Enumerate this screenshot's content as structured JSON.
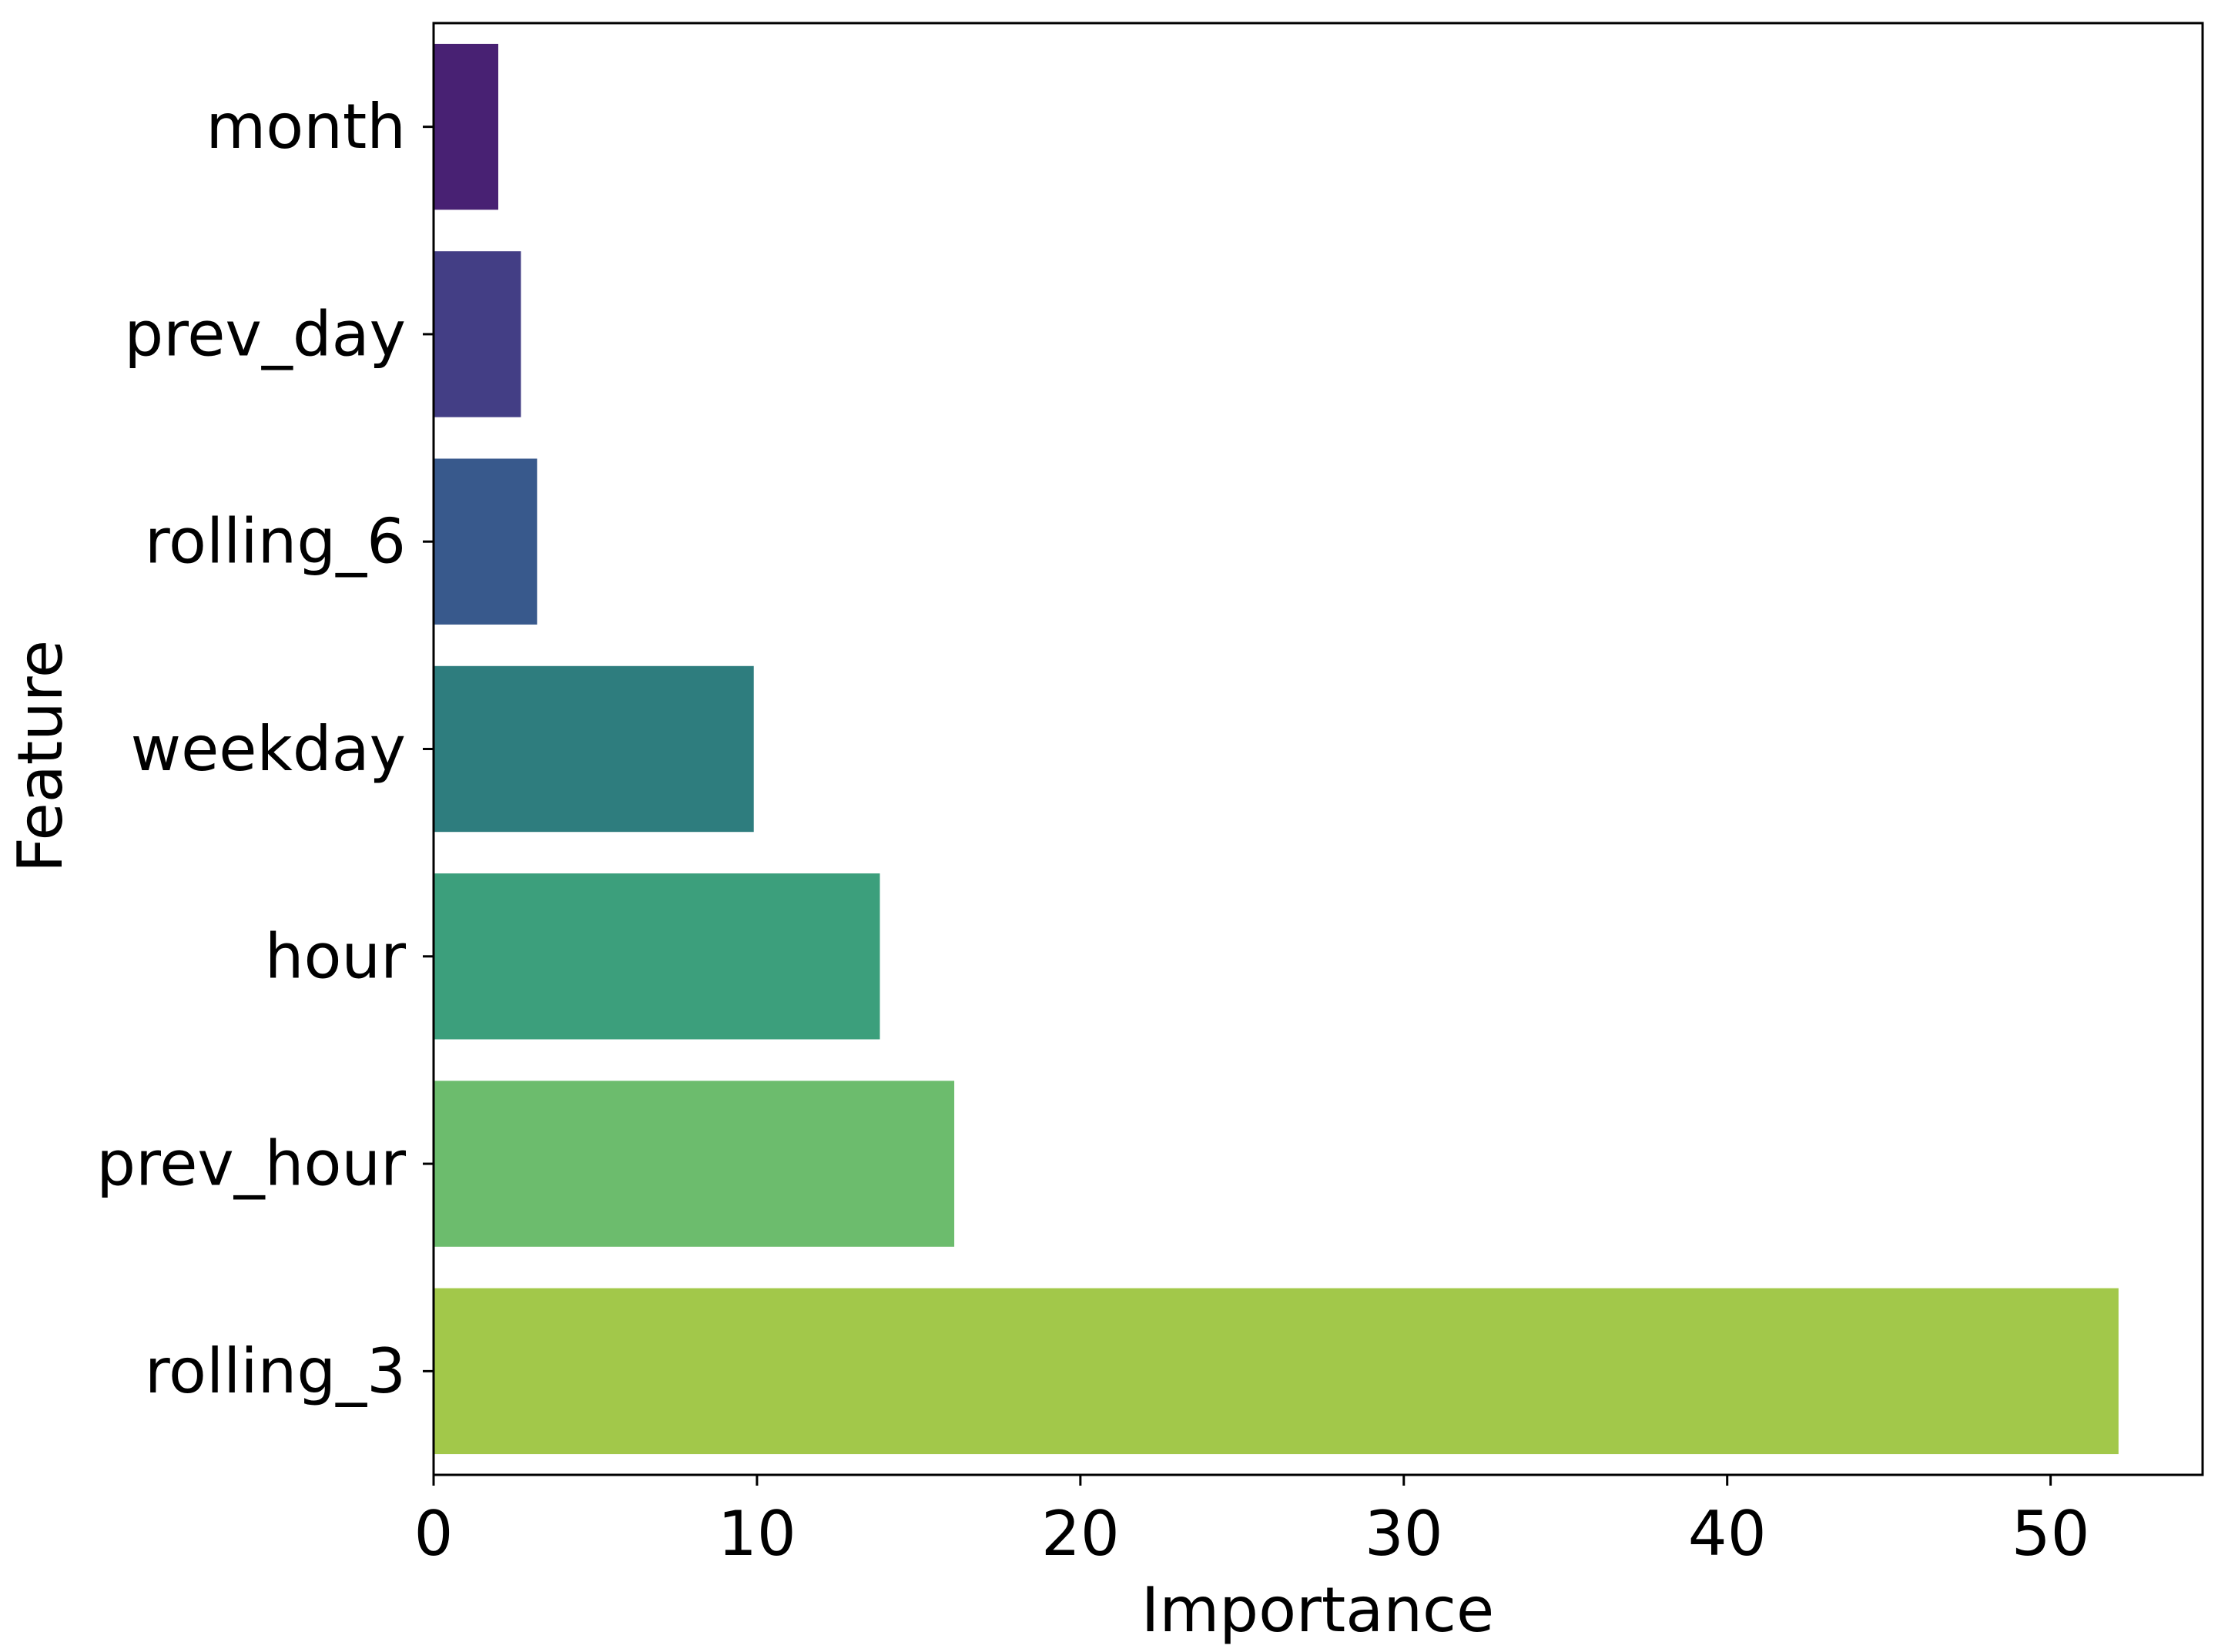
{
  "chart_data": {
    "type": "bar",
    "orientation": "horizontal",
    "title": "",
    "xlabel": "Importance",
    "ylabel": "Feature",
    "categories": [
      "month",
      "prev_day",
      "rolling_6",
      "weekday",
      "hour",
      "prev_hour",
      "rolling_3"
    ],
    "values": [
      2.0,
      2.7,
      3.2,
      9.9,
      13.8,
      16.1,
      52.1
    ],
    "colors": [
      "#482173",
      "#433e85",
      "#38598c",
      "#2e7d7e",
      "#3c9f7c",
      "#6cbc6d",
      "#a2c84a"
    ],
    "xlim": [
      0,
      54.7
    ],
    "xticks": [
      0,
      10,
      20,
      30,
      40,
      50
    ],
    "xtick_labels": [
      "0",
      "10",
      "20",
      "30",
      "40",
      "50"
    ],
    "grid": false,
    "legend": "none"
  }
}
